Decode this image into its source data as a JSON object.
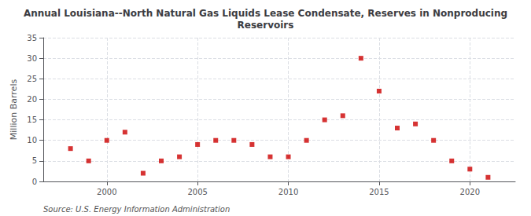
{
  "chart_data": {
    "type": "scatter",
    "title": "Annual Louisiana--North Natural Gas Liquids Lease Condensate, Reserves in Nonproducing\nReservoirs",
    "ylabel": "Million Barrels",
    "annotation": "Source: U.S. Energy Information Administration",
    "x": [
      1998,
      1999,
      2000,
      2001,
      2002,
      2003,
      2004,
      2005,
      2006,
      2007,
      2008,
      2009,
      2010,
      2011,
      2012,
      2013,
      2014,
      2015,
      2016,
      2017,
      2018,
      2019,
      2020,
      2021
    ],
    "values": [
      8.0,
      5.0,
      10.0,
      12.0,
      2.0,
      5.0,
      6.0,
      9.0,
      10.0,
      10.0,
      9.0,
      6.0,
      6.0,
      10.0,
      15.0,
      16.0,
      30.0,
      22.0,
      13.0,
      14.0,
      10.0,
      5.0,
      3.0,
      1.0
    ],
    "color": "#cc0000",
    "marker": "square",
    "xlim": [
      1996.5,
      2022.5
    ],
    "xticks": [
      2000,
      2005,
      2010,
      2015,
      2020
    ],
    "ylim": [
      0,
      35
    ],
    "yticks": [
      0,
      5,
      10,
      15,
      20,
      25,
      30,
      35
    ],
    "grid": true
  }
}
